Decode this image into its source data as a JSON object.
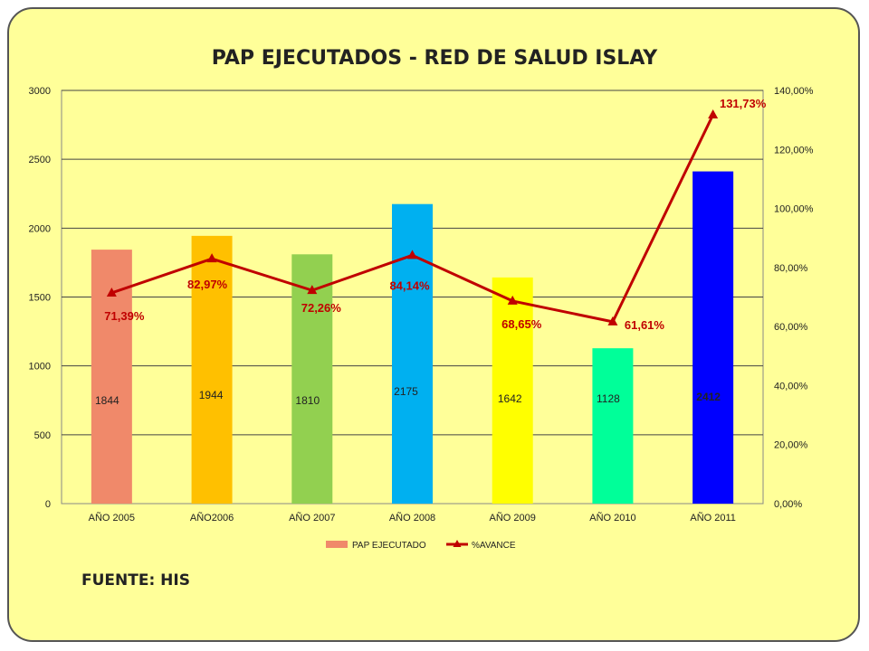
{
  "title": "PAP EJECUTADOS - RED DE SALUD ISLAY",
  "source": "FUENTE: HIS",
  "chart_data": {
    "type": "bar",
    "categories": [
      "AÑO 2005",
      "AÑO2006",
      "AÑO 2007",
      "AÑO 2008",
      "AÑO 2009",
      "AÑO 2010",
      "AÑO 2011"
    ],
    "series": [
      {
        "name": "PAP EJECUTADO",
        "type": "bar",
        "axis": "left",
        "values": [
          1844,
          1944,
          1810,
          2175,
          1642,
          1128,
          2412
        ],
        "labels": [
          "1844",
          "1944",
          "1810",
          "2175",
          "1642",
          "1128",
          "2412"
        ],
        "colors": [
          "#f0896a",
          "#ffc000",
          "#92d050",
          "#00b0f0",
          "#ffff00",
          "#00ff99",
          "#0000ff"
        ]
      },
      {
        "name": "%AVANCE",
        "type": "line",
        "axis": "right",
        "values": [
          71.39,
          82.97,
          72.26,
          84.14,
          68.65,
          61.61,
          131.73
        ],
        "labels": [
          "71,39%",
          "82,97%",
          "72,26%",
          "84,14%",
          "68,65%",
          "61,61%",
          "131,73%"
        ],
        "color": "#c00000"
      }
    ],
    "ylim": [
      0,
      3000
    ],
    "yticks": [
      "0",
      "500",
      "1000",
      "1500",
      "2000",
      "2500",
      "3000"
    ],
    "y2lim": [
      0,
      140
    ],
    "y2ticks": [
      "0,00%",
      "20,00%",
      "40,00%",
      "60,00%",
      "80,00%",
      "100,00%",
      "120,00%",
      "140,00%"
    ],
    "grid": true,
    "legend": "bottom"
  }
}
